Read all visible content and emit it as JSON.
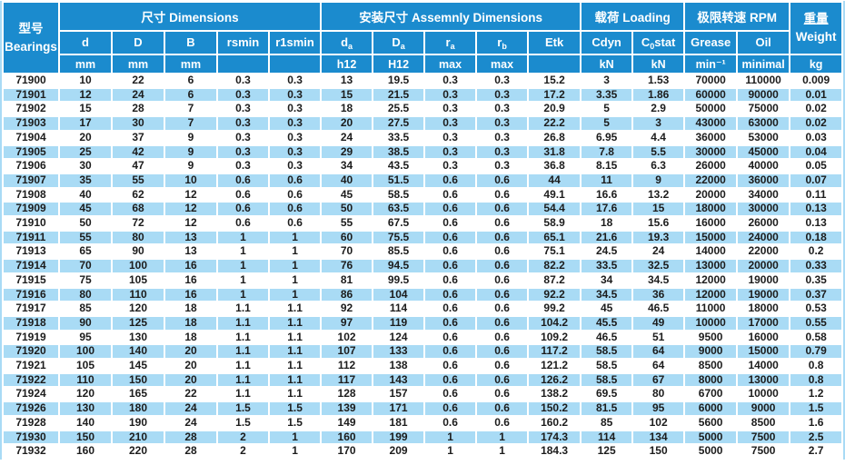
{
  "colors": {
    "header_blue": "#1b8bce",
    "stripe_blue": "#a9dbf5",
    "text_dark": "#1c1c1c"
  },
  "header": {
    "bearings_cn": "型号",
    "bearings_en": "Bearings",
    "groups": [
      {
        "label": "尺寸 Dimensions"
      },
      {
        "label": "安装尺寸 Assemnly Dimensions"
      },
      {
        "label": "载荷 Loading"
      },
      {
        "label": "极限转速 RPM"
      }
    ],
    "weight_cn": "重量",
    "weight_en": "Weight",
    "weight_unit": "kg",
    "columns": [
      {
        "name": "d",
        "sub": "",
        "suffix": "",
        "unit": "mm"
      },
      {
        "name": "D",
        "sub": "",
        "suffix": "",
        "unit": "mm"
      },
      {
        "name": "B",
        "sub": "",
        "suffix": "",
        "unit": "mm"
      },
      {
        "name": "rsmin",
        "sub": "",
        "suffix": "",
        "unit": ""
      },
      {
        "name": "r1smin",
        "sub": "",
        "suffix": "",
        "unit": ""
      },
      {
        "name": "d",
        "sub": "a",
        "suffix": "",
        "unit": "h12"
      },
      {
        "name": "D",
        "sub": "a",
        "suffix": "",
        "unit": "H12"
      },
      {
        "name": "r",
        "sub": "a",
        "suffix": "",
        "unit": "max"
      },
      {
        "name": "r",
        "sub": "b",
        "suffix": "",
        "unit": "max"
      },
      {
        "name": "Etk",
        "sub": "",
        "suffix": "",
        "unit": ""
      },
      {
        "name": "Cdyn",
        "sub": "",
        "suffix": "",
        "unit": "kN"
      },
      {
        "name": "C",
        "sub": "0",
        "suffix": "stat",
        "unit": "kN"
      },
      {
        "name": "Grease",
        "sub": "",
        "suffix": "",
        "unit": "min⁻¹"
      },
      {
        "name": "Oil",
        "sub": "",
        "suffix": "",
        "unit": "minimal"
      }
    ]
  },
  "rows": [
    [
      "71900",
      "10",
      "22",
      "6",
      "0.3",
      "0.3",
      "13",
      "19.5",
      "0.3",
      "0.3",
      "15.2",
      "3",
      "1.53",
      "70000",
      "110000",
      "0.009"
    ],
    [
      "71901",
      "12",
      "24",
      "6",
      "0.3",
      "0.3",
      "15",
      "21.5",
      "0.3",
      "0.3",
      "17.2",
      "3.35",
      "1.86",
      "60000",
      "90000",
      "0.01"
    ],
    [
      "71902",
      "15",
      "28",
      "7",
      "0.3",
      "0.3",
      "18",
      "25.5",
      "0.3",
      "0.3",
      "20.9",
      "5",
      "2.9",
      "50000",
      "75000",
      "0.02"
    ],
    [
      "71903",
      "17",
      "30",
      "7",
      "0.3",
      "0.3",
      "20",
      "27.5",
      "0.3",
      "0.3",
      "22.2",
      "5",
      "3",
      "43000",
      "63000",
      "0.02"
    ],
    [
      "71904",
      "20",
      "37",
      "9",
      "0.3",
      "0.3",
      "24",
      "33.5",
      "0.3",
      "0.3",
      "26.8",
      "6.95",
      "4.4",
      "36000",
      "53000",
      "0.03"
    ],
    [
      "71905",
      "25",
      "42",
      "9",
      "0.3",
      "0.3",
      "29",
      "38.5",
      "0.3",
      "0.3",
      "31.8",
      "7.8",
      "5.5",
      "30000",
      "45000",
      "0.04"
    ],
    [
      "71906",
      "30",
      "47",
      "9",
      "0.3",
      "0.3",
      "34",
      "43.5",
      "0.3",
      "0.3",
      "36.8",
      "8.15",
      "6.3",
      "26000",
      "40000",
      "0.05"
    ],
    [
      "71907",
      "35",
      "55",
      "10",
      "0.6",
      "0.6",
      "40",
      "51.5",
      "0.6",
      "0.6",
      "44",
      "11",
      "9",
      "22000",
      "36000",
      "0.07"
    ],
    [
      "71908",
      "40",
      "62",
      "12",
      "0.6",
      "0.6",
      "45",
      "58.5",
      "0.6",
      "0.6",
      "49.1",
      "16.6",
      "13.2",
      "20000",
      "34000",
      "0.11"
    ],
    [
      "71909",
      "45",
      "68",
      "12",
      "0.6",
      "0.6",
      "50",
      "63.5",
      "0.6",
      "0.6",
      "54.4",
      "17.6",
      "15",
      "18000",
      "30000",
      "0.13"
    ],
    [
      "71910",
      "50",
      "72",
      "12",
      "0.6",
      "0.6",
      "55",
      "67.5",
      "0.6",
      "0.6",
      "58.9",
      "18",
      "15.6",
      "16000",
      "26000",
      "0.13"
    ],
    [
      "71911",
      "55",
      "80",
      "13",
      "1",
      "1",
      "60",
      "75.5",
      "0.6",
      "0.6",
      "65.1",
      "21.6",
      "19.3",
      "15000",
      "24000",
      "0.18"
    ],
    [
      "71913",
      "65",
      "90",
      "13",
      "1",
      "1",
      "70",
      "85.5",
      "0.6",
      "0.6",
      "75.1",
      "24.5",
      "24",
      "14000",
      "22000",
      "0.2"
    ],
    [
      "71914",
      "70",
      "100",
      "16",
      "1",
      "1",
      "76",
      "94.5",
      "0.6",
      "0.6",
      "82.2",
      "33.5",
      "32.5",
      "13000",
      "20000",
      "0.33"
    ],
    [
      "71915",
      "75",
      "105",
      "16",
      "1",
      "1",
      "81",
      "99.5",
      "0.6",
      "0.6",
      "87.2",
      "34",
      "34.5",
      "12000",
      "19000",
      "0.35"
    ],
    [
      "71916",
      "80",
      "110",
      "16",
      "1",
      "1",
      "86",
      "104",
      "0.6",
      "0.6",
      "92.2",
      "34.5",
      "36",
      "12000",
      "19000",
      "0.37"
    ],
    [
      "71917",
      "85",
      "120",
      "18",
      "1.1",
      "1.1",
      "92",
      "114",
      "0.6",
      "0.6",
      "99.2",
      "45",
      "46.5",
      "11000",
      "18000",
      "0.53"
    ],
    [
      "71918",
      "90",
      "125",
      "18",
      "1.1",
      "1.1",
      "97",
      "119",
      "0.6",
      "0.6",
      "104.2",
      "45.5",
      "49",
      "10000",
      "17000",
      "0.55"
    ],
    [
      "71919",
      "95",
      "130",
      "18",
      "1.1",
      "1.1",
      "102",
      "124",
      "0.6",
      "0.6",
      "109.2",
      "46.5",
      "51",
      "9500",
      "16000",
      "0.58"
    ],
    [
      "71920",
      "100",
      "140",
      "20",
      "1.1",
      "1.1",
      "107",
      "133",
      "0.6",
      "0.6",
      "117.2",
      "58.5",
      "64",
      "9000",
      "15000",
      "0.79"
    ],
    [
      "71921",
      "105",
      "145",
      "20",
      "1.1",
      "1.1",
      "112",
      "138",
      "0.6",
      "0.6",
      "121.2",
      "58.5",
      "64",
      "8500",
      "14000",
      "0.8"
    ],
    [
      "71922",
      "110",
      "150",
      "20",
      "1.1",
      "1.1",
      "117",
      "143",
      "0.6",
      "0.6",
      "126.2",
      "58.5",
      "67",
      "8000",
      "13000",
      "0.8"
    ],
    [
      "71924",
      "120",
      "165",
      "22",
      "1.1",
      "1.1",
      "128",
      "157",
      "0.6",
      "0.6",
      "138.2",
      "69.5",
      "80",
      "6700",
      "10000",
      "1.2"
    ],
    [
      "71926",
      "130",
      "180",
      "24",
      "1.5",
      "1.5",
      "139",
      "171",
      "0.6",
      "0.6",
      "150.2",
      "81.5",
      "95",
      "6000",
      "9000",
      "1.5"
    ],
    [
      "71928",
      "140",
      "190",
      "24",
      "1.5",
      "1.5",
      "149",
      "181",
      "0.6",
      "0.6",
      "160.2",
      "85",
      "102",
      "5600",
      "8500",
      "1.6"
    ],
    [
      "71930",
      "150",
      "210",
      "28",
      "2",
      "1",
      "160",
      "199",
      "1",
      "1",
      "174.3",
      "114",
      "134",
      "5000",
      "7500",
      "2.5"
    ],
    [
      "71932",
      "160",
      "220",
      "28",
      "2",
      "1",
      "170",
      "209",
      "1",
      "1",
      "184.3",
      "125",
      "150",
      "5000",
      "7500",
      "2.7"
    ]
  ]
}
